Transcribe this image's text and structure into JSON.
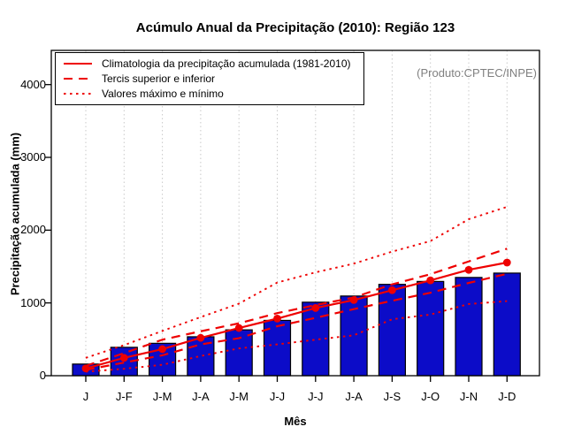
{
  "title": "Acúmulo Anual da Precipitação (2010): Região 123",
  "produto_note": "(Produto:CPTEC/INPE)",
  "colors": {
    "bar_fill": "#0c0cc8",
    "bar_border": "#000000",
    "line_red": "#ee0000",
    "grid": "#c9c9c9",
    "credit_gray": "#808080"
  },
  "chart_data": {
    "type": "bar",
    "title": "Acúmulo Anual da Precipitação (2010): Região 123",
    "xlabel": "Mês",
    "ylabel": "Precipitação acumulada (mm)",
    "categories": [
      "J",
      "J-F",
      "J-M",
      "J-A",
      "J-M",
      "J-J",
      "J-J",
      "J-A",
      "J-S",
      "J-O",
      "J-N",
      "J-D"
    ],
    "yticks": [
      0,
      1000,
      2000,
      3000,
      4000
    ],
    "ylim": [
      0,
      4470
    ],
    "grid": "vertical-dotted",
    "legend_position": "top-left",
    "series": [
      {
        "name": "Precipitação acumulada 2010",
        "type": "bar",
        "style": "solid",
        "values": [
          160,
          390,
          445,
          535,
          630,
          760,
          1010,
          1095,
          1255,
          1295,
          1350,
          1410
        ]
      },
      {
        "name": "Climatologia da precipitação acumulada (1981-2010)",
        "type": "line",
        "style": "solid",
        "marker": "circle",
        "values": [
          100,
          245,
          365,
          520,
          655,
          785,
          930,
          1040,
          1175,
          1310,
          1455,
          1555
        ]
      },
      {
        "name": "Tercil superior",
        "type": "line",
        "style": "dashed",
        "values": [
          135,
          310,
          495,
          610,
          720,
          860,
          970,
          1075,
          1255,
          1395,
          1570,
          1745
        ]
      },
      {
        "name": "Tercil inferior",
        "type": "line",
        "style": "dashed",
        "values": [
          80,
          180,
          280,
          430,
          515,
          680,
          795,
          915,
          1030,
          1140,
          1275,
          1400
        ]
      },
      {
        "name": "Valores máximos",
        "type": "line",
        "style": "dotted",
        "values": [
          245,
          420,
          615,
          805,
          990,
          1280,
          1420,
          1540,
          1705,
          1850,
          2150,
          2320
        ]
      },
      {
        "name": "Valores mínimos",
        "type": "line",
        "style": "dotted",
        "values": [
          55,
          95,
          150,
          270,
          375,
          430,
          495,
          555,
          775,
          840,
          985,
          1025
        ]
      }
    ],
    "legend": [
      {
        "label": "Climatologia da precipitação acumulada (1981-2010)",
        "style": "solid"
      },
      {
        "label": "Tercis superior e inferior",
        "style": "dashed"
      },
      {
        "label": "Valores máximo e mínimo",
        "style": "dotted"
      }
    ]
  }
}
